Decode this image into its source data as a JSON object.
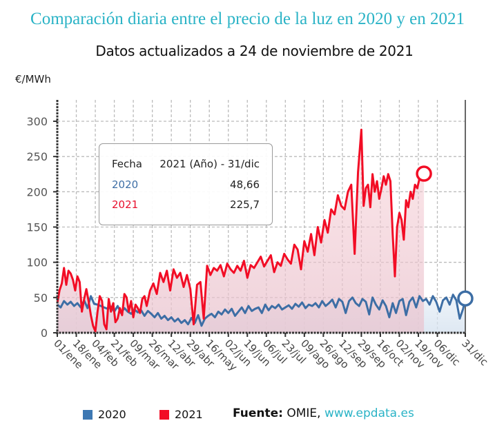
{
  "header": {
    "title": "Comparación diaria entre el precio de la luz en 2020 y en 2021",
    "subtitle": "Datos actualizados a 24 de noviembre de 2021",
    "unit": "€/MWh"
  },
  "tooltip": {
    "header_label": "Fecha",
    "header_value": "2021 (Año) - 31/dic",
    "rows": [
      {
        "label": "2020",
        "value": "48,66",
        "color": "#3e6fa6"
      },
      {
        "label": "2021",
        "value": "225,7",
        "color": "#e8102d"
      }
    ]
  },
  "legend": {
    "items": [
      {
        "label": "2020",
        "color": "#3d78b3"
      },
      {
        "label": "2021",
        "color": "#f20d25"
      }
    ]
  },
  "source": {
    "label": "Fuente:",
    "name": "OMIE,",
    "url": "www.epdata.es"
  },
  "chart_data": {
    "type": "line",
    "title": "Comparación diaria entre el precio de la luz en 2020 y en 2021",
    "subtitle": "Datos actualizados a 24 de noviembre de 2021",
    "xlabel": "",
    "ylabel": "€/MWh",
    "ylim": [
      0,
      330
    ],
    "yticks": [
      0,
      50,
      100,
      150,
      200,
      250,
      300
    ],
    "xlim_days": [
      0,
      365
    ],
    "xticks": [
      {
        "day": 0,
        "label": "01/ene"
      },
      {
        "day": 17,
        "label": "18/ene"
      },
      {
        "day": 34,
        "label": "04/feb"
      },
      {
        "day": 51,
        "label": "21/feb"
      },
      {
        "day": 68,
        "label": "09/mar"
      },
      {
        "day": 85,
        "label": "26/mar"
      },
      {
        "day": 102,
        "label": "12/abr"
      },
      {
        "day": 119,
        "label": "29/abr"
      },
      {
        "day": 136,
        "label": "16/may"
      },
      {
        "day": 153,
        "label": "02/jun"
      },
      {
        "day": 170,
        "label": "19/jun"
      },
      {
        "day": 187,
        "label": "06/jul"
      },
      {
        "day": 204,
        "label": "23/jul"
      },
      {
        "day": 221,
        "label": "09/ago"
      },
      {
        "day": 238,
        "label": "26/ago"
      },
      {
        "day": 255,
        "label": "12/sep"
      },
      {
        "day": 272,
        "label": "29/sep"
      },
      {
        "day": 289,
        "label": "16/oct"
      },
      {
        "day": 306,
        "label": "02/nov"
      },
      {
        "day": 323,
        "label": "19/nov"
      },
      {
        "day": 340,
        "label": "06/dic"
      },
      {
        "day": 365,
        "label": "31/dic"
      }
    ],
    "grid": true,
    "legend_position": "bottom",
    "series": [
      {
        "name": "2020",
        "color": "#3d6ea5",
        "x_days": [
          0,
          3,
          6,
          9,
          12,
          15,
          18,
          21,
          24,
          27,
          30,
          33,
          36,
          39,
          42,
          45,
          48,
          51,
          54,
          57,
          60,
          63,
          66,
          69,
          72,
          75,
          78,
          81,
          84,
          87,
          90,
          93,
          96,
          99,
          102,
          105,
          108,
          111,
          114,
          117,
          120,
          123,
          126,
          129,
          132,
          135,
          138,
          141,
          144,
          147,
          150,
          153,
          156,
          159,
          162,
          165,
          168,
          171,
          174,
          177,
          180,
          183,
          186,
          189,
          192,
          195,
          198,
          201,
          204,
          207,
          210,
          213,
          216,
          219,
          222,
          225,
          228,
          231,
          234,
          237,
          240,
          243,
          246,
          249,
          252,
          255,
          258,
          261,
          264,
          267,
          270,
          273,
          276,
          279,
          282,
          285,
          288,
          291,
          294,
          297,
          300,
          303,
          306,
          309,
          312,
          315,
          318,
          321,
          324,
          327,
          330,
          333,
          336,
          339,
          342,
          345,
          348,
          351,
          354,
          357,
          360,
          363,
          365
        ],
        "values": [
          40,
          36,
          45,
          40,
          44,
          38,
          42,
          36,
          46,
          35,
          52,
          41,
          40,
          38,
          36,
          34,
          37,
          30,
          38,
          28,
          35,
          30,
          27,
          33,
          29,
          32,
          24,
          31,
          27,
          22,
          28,
          20,
          24,
          18,
          22,
          16,
          20,
          14,
          18,
          12,
          21,
          14,
          25,
          10,
          20,
          24,
          27,
          22,
          30,
          26,
          33,
          28,
          34,
          24,
          30,
          36,
          28,
          38,
          31,
          34,
          36,
          28,
          40,
          32,
          38,
          35,
          40,
          33,
          36,
          39,
          34,
          41,
          37,
          43,
          35,
          40,
          38,
          42,
          36,
          45,
          38,
          42,
          47,
          36,
          48,
          44,
          28,
          45,
          50,
          42,
          38,
          48,
          44,
          26,
          50,
          40,
          33,
          46,
          38,
          22,
          42,
          28,
          45,
          48,
          25,
          44,
          50,
          36,
          52,
          45,
          48,
          40,
          52,
          44,
          30,
          46,
          50,
          40,
          54,
          46,
          20,
          34,
          48.66
        ],
        "value_labels": {
          "last": 48.66
        }
      },
      {
        "name": "2021",
        "color": "#f20d25",
        "x_days": [
          0,
          2,
          4,
          6,
          8,
          10,
          12,
          14,
          16,
          18,
          20,
          22,
          24,
          26,
          28,
          30,
          32,
          34,
          36,
          38,
          40,
          42,
          44,
          46,
          48,
          50,
          52,
          54,
          56,
          58,
          60,
          62,
          64,
          66,
          68,
          70,
          72,
          74,
          76,
          78,
          80,
          83,
          86,
          89,
          92,
          95,
          98,
          101,
          104,
          107,
          110,
          113,
          116,
          119,
          122,
          125,
          128,
          131,
          134,
          137,
          140,
          143,
          146,
          149,
          152,
          155,
          158,
          161,
          164,
          167,
          170,
          173,
          176,
          179,
          182,
          185,
          188,
          191,
          194,
          197,
          200,
          203,
          206,
          209,
          212,
          215,
          218,
          221,
          224,
          227,
          230,
          233,
          236,
          239,
          242,
          245,
          248,
          251,
          254,
          257,
          260,
          263,
          266,
          269,
          272,
          274,
          276,
          278,
          280,
          282,
          284,
          286,
          288,
          290,
          292,
          294,
          296,
          298,
          300,
          302,
          304,
          306,
          308,
          310,
          312,
          314,
          316,
          318,
          320,
          322,
          325,
          328
        ],
        "values": [
          42,
          60,
          70,
          92,
          68,
          88,
          84,
          75,
          60,
          80,
          72,
          30,
          48,
          62,
          45,
          25,
          10,
          2,
          30,
          52,
          45,
          12,
          5,
          48,
          30,
          42,
          15,
          20,
          35,
          25,
          55,
          50,
          30,
          45,
          22,
          40,
          35,
          28,
          48,
          52,
          38,
          60,
          70,
          55,
          85,
          72,
          88,
          60,
          90,
          78,
          85,
          65,
          82,
          62,
          12,
          68,
          72,
          20,
          95,
          82,
          92,
          88,
          96,
          80,
          98,
          90,
          85,
          95,
          88,
          102,
          78,
          96,
          92,
          100,
          108,
          94,
          102,
          110,
          86,
          100,
          95,
          112,
          104,
          98,
          125,
          118,
          90,
          130,
          115,
          140,
          110,
          150,
          128,
          160,
          142,
          175,
          168,
          195,
          180,
          175,
          200,
          210,
          112,
          228,
          288,
          180,
          205,
          210,
          178,
          225,
          200,
          215,
          190,
          205,
          222,
          210,
          225,
          215,
          140,
          80,
          150,
          170,
          160,
          132,
          188,
          178,
          200,
          190,
          210,
          205,
          225.7,
          225.7
        ],
        "value_labels": {
          "last": 225.7
        }
      }
    ],
    "markers": [
      {
        "series": "2020",
        "day": 365,
        "value": 48.66
      },
      {
        "series": "2021",
        "day": 328,
        "value": 225.7
      }
    ]
  }
}
